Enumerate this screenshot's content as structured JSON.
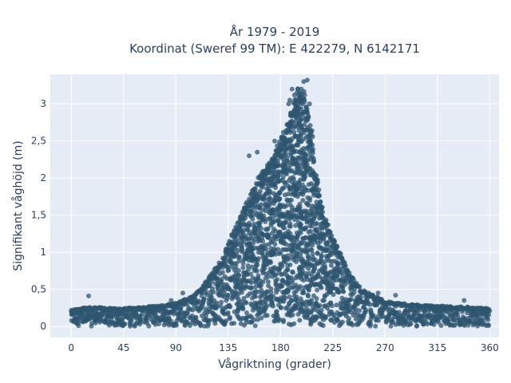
{
  "chart_data": {
    "type": "scatter",
    "title_lines": [
      "År 1979 - 2019",
      "Koordinat (Sweref 99 TM): E 422279, N 6142171"
    ],
    "xlabel": "Vågriktning (grader)",
    "ylabel": "Signifikant våghöjd (m)",
    "xlim": [
      -18,
      368
    ],
    "ylim": [
      -0.15,
      3.4
    ],
    "xticks": [
      0,
      45,
      90,
      135,
      180,
      225,
      270,
      315,
      360
    ],
    "xtick_labels": [
      "0",
      "45",
      "90",
      "135",
      "180",
      "225",
      "270",
      "315",
      "360"
    ],
    "yticks": [
      0,
      0.5,
      1,
      1.5,
      2,
      2.5,
      3
    ],
    "ytick_labels": [
      "0",
      "0,5",
      "1",
      "1,5",
      "2",
      "2,5",
      "3"
    ],
    "grid": true,
    "colors": {
      "marker": "#2f5670",
      "plot_bg": "#e5ecf6",
      "grid": "#ffffff",
      "text": "#2a3f5f"
    },
    "envelope": [
      {
        "x": 0,
        "y": 0.22
      },
      {
        "x": 10,
        "y": 0.25
      },
      {
        "x": 20,
        "y": 0.26
      },
      {
        "x": 40,
        "y": 0.24
      },
      {
        "x": 60,
        "y": 0.26
      },
      {
        "x": 80,
        "y": 0.29
      },
      {
        "x": 90,
        "y": 0.32
      },
      {
        "x": 100,
        "y": 0.38
      },
      {
        "x": 110,
        "y": 0.48
      },
      {
        "x": 120,
        "y": 0.7
      },
      {
        "x": 130,
        "y": 0.92
      },
      {
        "x": 140,
        "y": 1.3
      },
      {
        "x": 150,
        "y": 1.65
      },
      {
        "x": 160,
        "y": 2.0
      },
      {
        "x": 170,
        "y": 2.2
      },
      {
        "x": 175,
        "y": 2.35
      },
      {
        "x": 180,
        "y": 2.55
      },
      {
        "x": 185,
        "y": 2.7
      },
      {
        "x": 190,
        "y": 2.95
      },
      {
        "x": 195,
        "y": 3.25
      },
      {
        "x": 200,
        "y": 3.2
      },
      {
        "x": 205,
        "y": 2.85
      },
      {
        "x": 210,
        "y": 2.2
      },
      {
        "x": 215,
        "y": 1.7
      },
      {
        "x": 220,
        "y": 1.4
      },
      {
        "x": 230,
        "y": 1.05
      },
      {
        "x": 240,
        "y": 0.7
      },
      {
        "x": 250,
        "y": 0.5
      },
      {
        "x": 260,
        "y": 0.42
      },
      {
        "x": 270,
        "y": 0.34
      },
      {
        "x": 290,
        "y": 0.3
      },
      {
        "x": 310,
        "y": 0.28
      },
      {
        "x": 330,
        "y": 0.27
      },
      {
        "x": 345,
        "y": 0.26
      },
      {
        "x": 360,
        "y": 0.24
      }
    ],
    "outliers": [
      {
        "x": 15,
        "y": 0.41
      },
      {
        "x": 86,
        "y": 0.35
      },
      {
        "x": 96,
        "y": 0.45
      },
      {
        "x": 110,
        "y": 0.48
      },
      {
        "x": 118,
        "y": 0.55
      },
      {
        "x": 122,
        "y": 0.67
      },
      {
        "x": 153,
        "y": 2.3
      },
      {
        "x": 160,
        "y": 2.35
      },
      {
        "x": 175,
        "y": 2.5
      },
      {
        "x": 187,
        "y": 3.0
      },
      {
        "x": 188,
        "y": 3.05
      },
      {
        "x": 189,
        "y": 2.85
      },
      {
        "x": 190,
        "y": 3.2
      },
      {
        "x": 192,
        "y": 3.12
      },
      {
        "x": 195,
        "y": 2.9
      },
      {
        "x": 198,
        "y": 3.2
      },
      {
        "x": 200,
        "y": 3.3
      },
      {
        "x": 203,
        "y": 3.32
      },
      {
        "x": 205,
        "y": 3.0
      },
      {
        "x": 264,
        "y": 0.45
      },
      {
        "x": 279,
        "y": 0.42
      },
      {
        "x": 338,
        "y": 0.35
      },
      {
        "x": 356,
        "y": 0.24
      }
    ]
  }
}
